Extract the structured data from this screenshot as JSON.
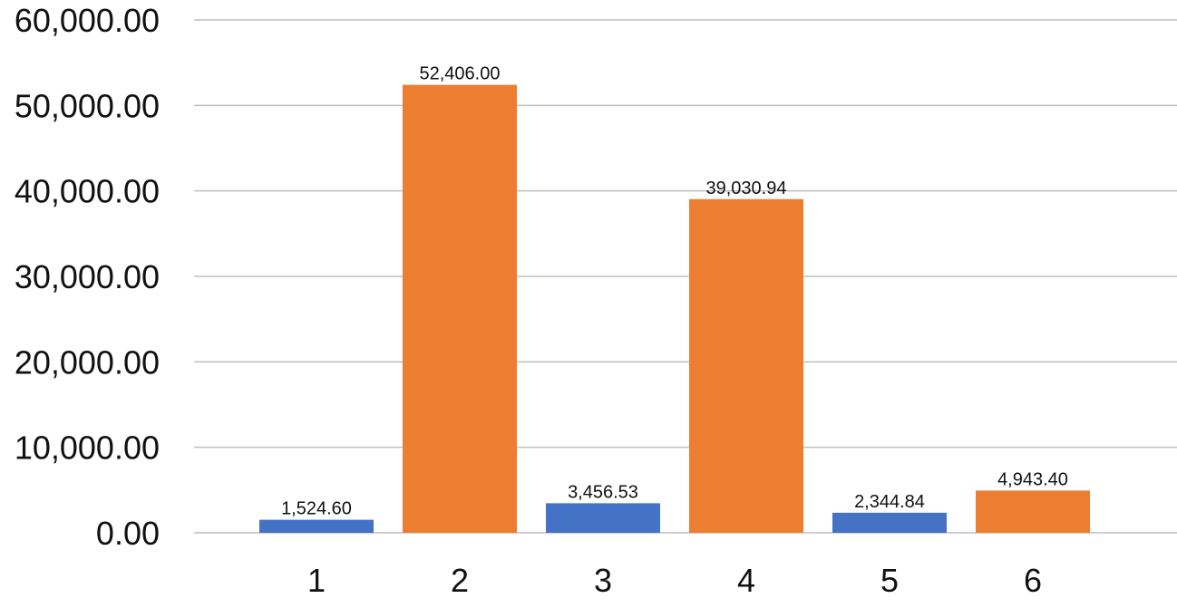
{
  "chart_data": {
    "type": "bar",
    "title": "",
    "xlabel": "",
    "ylabel": "",
    "categories": [
      "1",
      "2",
      "3",
      "4",
      "5",
      "6"
    ],
    "values": [
      1524.6,
      52406.0,
      3456.53,
      39030.94,
      2344.84,
      4943.4
    ],
    "data_labels": [
      "1,524.60",
      "52,406.00",
      "3,456.53",
      "39,030.94",
      "2,344.84",
      "4,943.40"
    ],
    "bar_colors": [
      "#4472c4",
      "#ed7d31",
      "#4472c4",
      "#ed7d31",
      "#4472c4",
      "#ed7d31"
    ],
    "ylim": [
      0,
      60000
    ],
    "yticks": [
      0,
      10000,
      20000,
      30000,
      40000,
      50000,
      60000
    ],
    "ytick_labels": [
      "0.00",
      "10,000.00",
      "20,000.00",
      "30,000.00",
      "40,000.00",
      "50,000.00",
      "60,000.00"
    ],
    "grid": true,
    "legend": "none"
  }
}
